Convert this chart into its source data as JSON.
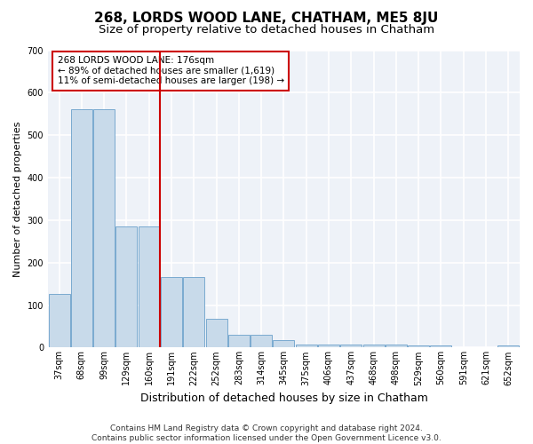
{
  "title1": "268, LORDS WOOD LANE, CHATHAM, ME5 8JU",
  "title2": "Size of property relative to detached houses in Chatham",
  "xlabel": "Distribution of detached houses by size in Chatham",
  "ylabel": "Number of detached properties",
  "categories": [
    "37sqm",
    "68sqm",
    "99sqm",
    "129sqm",
    "160sqm",
    "191sqm",
    "222sqm",
    "252sqm",
    "283sqm",
    "314sqm",
    "345sqm",
    "375sqm",
    "406sqm",
    "437sqm",
    "468sqm",
    "498sqm",
    "529sqm",
    "560sqm",
    "591sqm",
    "621sqm",
    "652sqm"
  ],
  "values": [
    127,
    560,
    560,
    285,
    285,
    166,
    166,
    68,
    30,
    30,
    18,
    8,
    8,
    8,
    8,
    8,
    5,
    5,
    0,
    0,
    5
  ],
  "bar_color": "#c8daea",
  "bar_edge_color": "#7aaad0",
  "vline_x_idx": 5,
  "vline_color": "#cc0000",
  "annotation_text": "268 LORDS WOOD LANE: 176sqm\n← 89% of detached houses are smaller (1,619)\n11% of semi-detached houses are larger (198) →",
  "annotation_box_color": "#ffffff",
  "annotation_box_edge": "#cc0000",
  "ylim": [
    0,
    700
  ],
  "yticks": [
    0,
    100,
    200,
    300,
    400,
    500,
    600,
    700
  ],
  "footer": "Contains HM Land Registry data © Crown copyright and database right 2024.\nContains public sector information licensed under the Open Government Licence v3.0.",
  "bg_color": "#ffffff",
  "plot_bg_color": "#eef2f8",
  "grid_color": "#ffffff",
  "title1_fontsize": 11,
  "title2_fontsize": 9.5,
  "xlabel_fontsize": 9,
  "ylabel_fontsize": 8,
  "tick_fontsize": 7,
  "footer_fontsize": 6.5
}
